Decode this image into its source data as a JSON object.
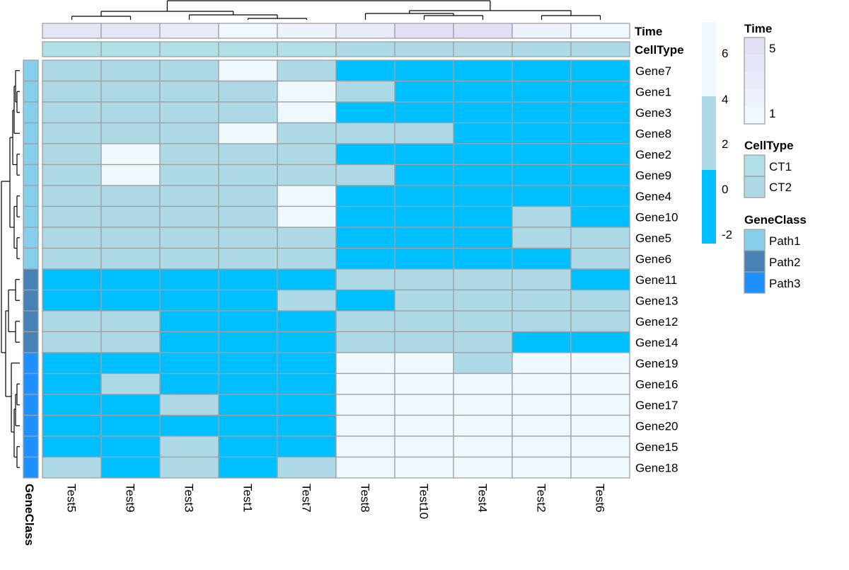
{
  "chart_data": {
    "type": "heatmap",
    "columns": [
      "Test5",
      "Test9",
      "Test3",
      "Test1",
      "Test7",
      "Test8",
      "Test10",
      "Test4",
      "Test2",
      "Test6"
    ],
    "rows": [
      "Gene7",
      "Gene1",
      "Gene3",
      "Gene8",
      "Gene2",
      "Gene9",
      "Gene4",
      "Gene10",
      "Gene5",
      "Gene6",
      "Gene11",
      "Gene13",
      "Gene12",
      "Gene14",
      "Gene19",
      "Gene16",
      "Gene17",
      "Gene20",
      "Gene15",
      "Gene18"
    ],
    "values": [
      [
        2,
        2,
        2,
        5,
        2,
        -1,
        -1,
        -1,
        -1,
        -1
      ],
      [
        2,
        2,
        2,
        2,
        5,
        2,
        -1,
        -1,
        -1,
        -1
      ],
      [
        2,
        2,
        2,
        2,
        5,
        -1,
        -1,
        -1,
        -1,
        -1
      ],
      [
        2,
        2,
        2,
        5,
        2,
        2,
        2,
        -1,
        -1,
        -1
      ],
      [
        2,
        5,
        2,
        2,
        2,
        -1,
        -1,
        -1,
        -1,
        -1
      ],
      [
        2,
        5,
        2,
        2,
        2,
        2,
        -1,
        -1,
        -1,
        -1
      ],
      [
        2,
        2,
        2,
        2,
        5,
        -1,
        -1,
        -1,
        -1,
        -1
      ],
      [
        2,
        2,
        2,
        2,
        5,
        -1,
        -1,
        -1,
        2,
        -1
      ],
      [
        2,
        2,
        2,
        2,
        2,
        -1,
        -1,
        -1,
        2,
        2
      ],
      [
        2,
        2,
        2,
        2,
        2,
        -1,
        -1,
        -1,
        -1,
        2
      ],
      [
        -1,
        -1,
        -1,
        -1,
        -1,
        2,
        2,
        2,
        2,
        -1
      ],
      [
        -1,
        -1,
        -1,
        -1,
        2,
        -1,
        2,
        2,
        2,
        2
      ],
      [
        2,
        2,
        -1,
        -1,
        -1,
        2,
        2,
        2,
        2,
        2
      ],
      [
        2,
        2,
        -1,
        -1,
        -1,
        2,
        2,
        2,
        -1,
        -1
      ],
      [
        -1,
        -1,
        -1,
        -1,
        -1,
        5,
        5,
        2,
        5,
        5
      ],
      [
        -1,
        2,
        -1,
        -1,
        -1,
        5,
        5,
        5,
        5,
        5
      ],
      [
        -1,
        -1,
        2,
        -1,
        -1,
        5,
        5,
        5,
        5,
        5
      ],
      [
        -1,
        -1,
        -1,
        -1,
        -1,
        5,
        5,
        5,
        5,
        5
      ],
      [
        -1,
        -1,
        2,
        -1,
        -1,
        5,
        5,
        5,
        5,
        5
      ],
      [
        2,
        -1,
        2,
        -1,
        2,
        5,
        5,
        5,
        5,
        5
      ]
    ],
    "color_scale": {
      "ticks": [
        6,
        4,
        2,
        0,
        -2
      ],
      "bins": [
        {
          "color": "#F0F8FF"
        },
        {
          "color": "#ADD8E6"
        },
        {
          "color": "#00BFFF"
        }
      ]
    },
    "column_annotations": [
      {
        "name": "Time",
        "values": [
          4,
          4,
          3,
          1,
          2,
          3,
          5,
          5,
          2,
          1
        ],
        "colors": {
          "1": "#F0F8FF",
          "2": "#ECF1FC",
          "3": "#E9EBF8",
          "4": "#E4E5F6",
          "5": "#E1E0F4"
        }
      },
      {
        "name": "CellType",
        "values": [
          "CT1",
          "CT1",
          "CT1",
          "CT1",
          "CT1",
          "CT2",
          "CT2",
          "CT2",
          "CT2",
          "CT2"
        ],
        "colors": {
          "CT1": "#B0E0E6",
          "CT2": "#ADD8E6"
        }
      }
    ],
    "row_annotation": {
      "name": "GeneClass",
      "values": [
        "Path1",
        "Path1",
        "Path1",
        "Path1",
        "Path1",
        "Path1",
        "Path1",
        "Path1",
        "Path1",
        "Path1",
        "Path2",
        "Path2",
        "Path2",
        "Path2",
        "Path3",
        "Path3",
        "Path3",
        "Path3",
        "Path3",
        "Path3"
      ],
      "colors": {
        "Path1": "#87CEEB",
        "Path2": "#4682B4",
        "Path3": "#1E90FF"
      }
    },
    "legends": {
      "time": {
        "title": "Time",
        "labels": [
          "5",
          "1"
        ]
      },
      "celltype": {
        "title": "CellType",
        "items": [
          {
            "label": "CT1",
            "color": "#B0E0E6"
          },
          {
            "label": "CT2",
            "color": "#ADD8E6"
          }
        ]
      },
      "geneclass": {
        "title": "GeneClass",
        "items": [
          {
            "label": "Path1",
            "color": "#87CEEB"
          },
          {
            "label": "Path2",
            "color": "#4682B4"
          },
          {
            "label": "Path3",
            "color": "#1E90FF"
          }
        ]
      }
    },
    "grid_color": "#A0A0A0"
  }
}
